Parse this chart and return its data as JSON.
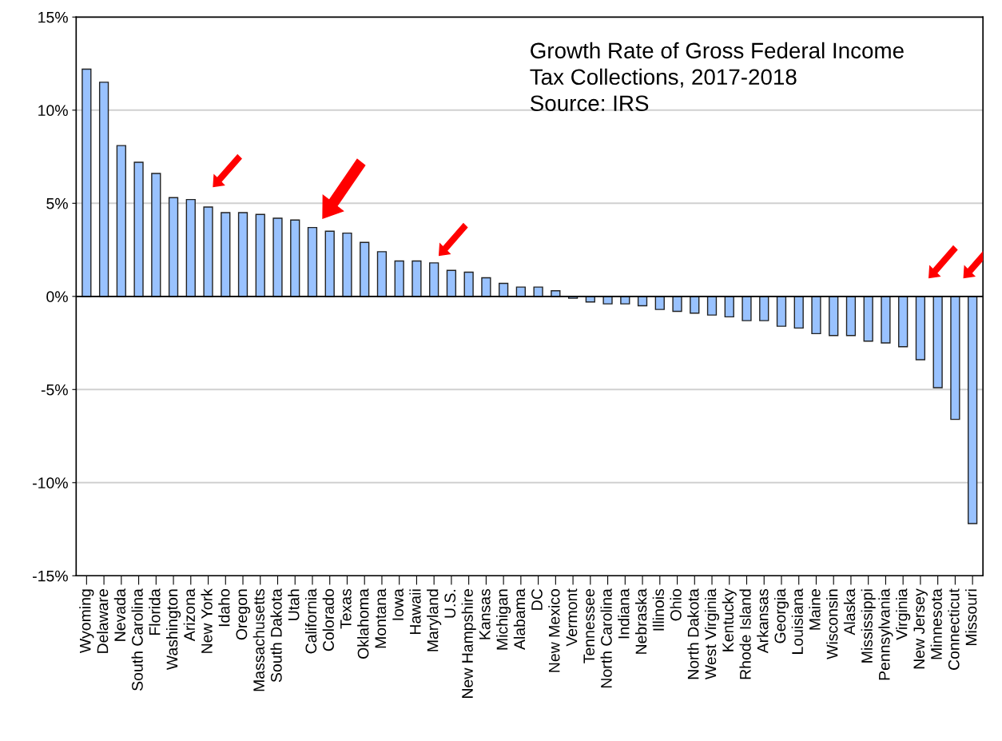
{
  "chart_data": {
    "type": "bar",
    "title": "Growth Rate of Gross Federal Income\nTax Collections, 2017-2018",
    "annotations": [
      "Source: IRS"
    ],
    "categories": [
      "Wyoming",
      "Delaware",
      "Nevada",
      "South Carolina",
      "Florida",
      "Washington",
      "Arizona",
      "New York",
      "Idaho",
      "Oregon",
      "Massachusetts",
      "South Dakota",
      "Utah",
      "California",
      "Colorado",
      "Texas",
      "Oklahoma",
      "Montana",
      "Iowa",
      "Hawaii",
      "Maryland",
      "U.S.",
      "New Hampshire",
      "Kansas",
      "Michigan",
      "Alabama",
      "DC",
      "New Mexico",
      "Vermont",
      "Tennessee",
      "North Carolina",
      "Indiana",
      "Nebraska",
      "Illinois",
      "Ohio",
      "North Dakota",
      "West Virginia",
      "Kentucky",
      "Rhode Island",
      "Arkansas",
      "Georgia",
      "Louisiana",
      "Maine",
      "Wisconsin",
      "Alaska",
      "Mississippi",
      "Pennsylvania",
      "Virginia",
      "New Jersey",
      "Minnesota",
      "Connecticut",
      "Missouri"
    ],
    "values": [
      12.2,
      11.5,
      8.1,
      7.2,
      6.6,
      5.3,
      5.2,
      4.8,
      4.5,
      4.5,
      4.4,
      4.2,
      4.1,
      3.7,
      3.5,
      3.4,
      2.9,
      2.4,
      1.9,
      1.9,
      1.8,
      1.4,
      1.3,
      1.0,
      0.7,
      0.5,
      0.5,
      0.3,
      -0.1,
      -0.3,
      -0.4,
      -0.4,
      -0.5,
      -0.7,
      -0.8,
      -0.9,
      -1.0,
      -1.1,
      -1.3,
      -1.3,
      -1.6,
      -1.7,
      -2.0,
      -2.1,
      -2.1,
      -2.4,
      -2.5,
      -2.7,
      -3.4,
      -4.9,
      -6.6,
      -12.2
    ],
    "color": "#99c2ff",
    "ylim": [
      -15,
      15
    ],
    "yticks": [
      {
        "value": -15,
        "label": "-15%"
      },
      {
        "value": -10,
        "label": "-10%"
      },
      {
        "value": -5,
        "label": "-5%"
      },
      {
        "value": 0,
        "label": "0%"
      },
      {
        "value": 5,
        "label": "5%"
      },
      {
        "value": 10,
        "label": "10%"
      },
      {
        "value": 15,
        "label": "15%"
      }
    ],
    "grid": "y"
  }
}
